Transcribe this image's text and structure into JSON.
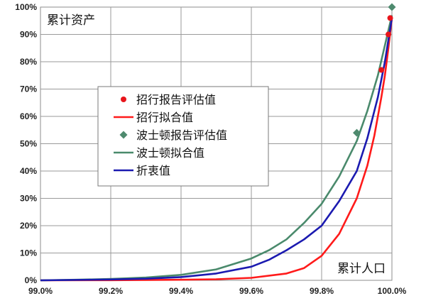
{
  "chart_data": {
    "type": "line",
    "ylabel": "累计资产",
    "xlabel": "累计人口",
    "xlim": [
      99.0,
      100.0
    ],
    "ylim": [
      0,
      100
    ],
    "x_ticks": [
      "99.0%",
      "99.2%",
      "99.4%",
      "99.6%",
      "99.8%",
      "100.0%"
    ],
    "y_ticks": [
      "0%",
      "10%",
      "20%",
      "30%",
      "40%",
      "50%",
      "60%",
      "70%",
      "80%",
      "90%",
      "100%"
    ],
    "grid": true,
    "legend_position": "center-left",
    "series": [
      {
        "name": "招行报告评估值",
        "kind": "markers",
        "marker": "circle",
        "color": "#e8151b",
        "points": [
          {
            "x": 99.97,
            "y": 77
          },
          {
            "x": 99.99,
            "y": 90
          },
          {
            "x": 99.995,
            "y": 96
          }
        ]
      },
      {
        "name": "招行拟合值",
        "kind": "line",
        "color": "#ff1a1a",
        "points": [
          {
            "x": 99.0,
            "y": 0
          },
          {
            "x": 99.2,
            "y": 0.05
          },
          {
            "x": 99.4,
            "y": 0.2
          },
          {
            "x": 99.5,
            "y": 0.4
          },
          {
            "x": 99.6,
            "y": 0.9
          },
          {
            "x": 99.7,
            "y": 2.5
          },
          {
            "x": 99.75,
            "y": 4.5
          },
          {
            "x": 99.8,
            "y": 9
          },
          {
            "x": 99.85,
            "y": 17
          },
          {
            "x": 99.9,
            "y": 30
          },
          {
            "x": 99.93,
            "y": 42
          },
          {
            "x": 99.95,
            "y": 53
          },
          {
            "x": 99.97,
            "y": 67
          },
          {
            "x": 99.98,
            "y": 75
          },
          {
            "x": 99.99,
            "y": 85
          },
          {
            "x": 100.0,
            "y": 96
          }
        ]
      },
      {
        "name": "波士顿报告评估值",
        "kind": "markers",
        "marker": "diamond",
        "color": "#4e8a6e",
        "points": [
          {
            "x": 99.9,
            "y": 54
          },
          {
            "x": 100.0,
            "y": 100
          }
        ]
      },
      {
        "name": "波士顿拟合值",
        "kind": "line",
        "color": "#4a8a6c",
        "points": [
          {
            "x": 99.0,
            "y": 0
          },
          {
            "x": 99.1,
            "y": 0.2
          },
          {
            "x": 99.2,
            "y": 0.5
          },
          {
            "x": 99.3,
            "y": 1.0
          },
          {
            "x": 99.4,
            "y": 2.0
          },
          {
            "x": 99.5,
            "y": 4.0
          },
          {
            "x": 99.6,
            "y": 8.0
          },
          {
            "x": 99.65,
            "y": 11
          },
          {
            "x": 99.7,
            "y": 15
          },
          {
            "x": 99.75,
            "y": 21
          },
          {
            "x": 99.8,
            "y": 28
          },
          {
            "x": 99.85,
            "y": 38
          },
          {
            "x": 99.9,
            "y": 51
          },
          {
            "x": 99.93,
            "y": 62
          },
          {
            "x": 99.96,
            "y": 75
          },
          {
            "x": 99.98,
            "y": 86
          },
          {
            "x": 100.0,
            "y": 97
          }
        ]
      },
      {
        "name": "折衷值",
        "kind": "line",
        "color": "#1b1ab0",
        "points": [
          {
            "x": 99.0,
            "y": 0
          },
          {
            "x": 99.2,
            "y": 0.3
          },
          {
            "x": 99.3,
            "y": 0.6
          },
          {
            "x": 99.4,
            "y": 1.2
          },
          {
            "x": 99.5,
            "y": 2.5
          },
          {
            "x": 99.6,
            "y": 5
          },
          {
            "x": 99.65,
            "y": 7.5
          },
          {
            "x": 99.7,
            "y": 11
          },
          {
            "x": 99.75,
            "y": 15
          },
          {
            "x": 99.8,
            "y": 20
          },
          {
            "x": 99.85,
            "y": 29
          },
          {
            "x": 99.9,
            "y": 40
          },
          {
            "x": 99.93,
            "y": 52
          },
          {
            "x": 99.96,
            "y": 67
          },
          {
            "x": 99.98,
            "y": 80
          },
          {
            "x": 100.0,
            "y": 96
          }
        ]
      }
    ]
  }
}
